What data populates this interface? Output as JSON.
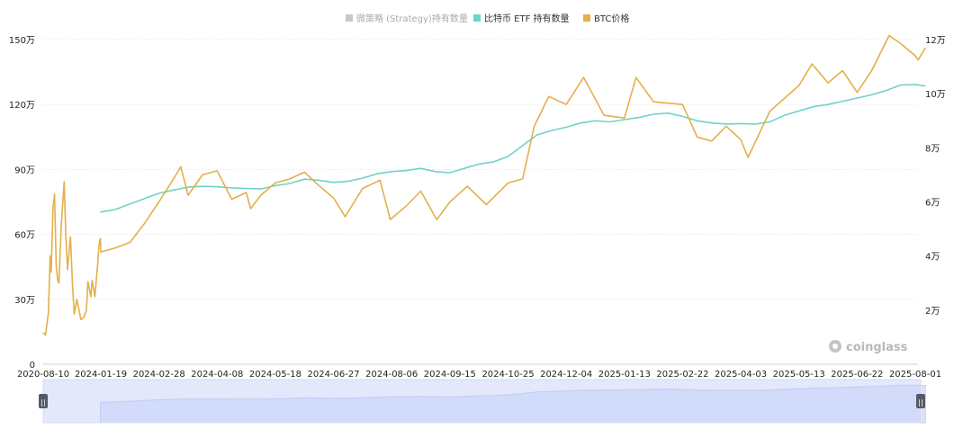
{
  "chart_data": {
    "type": "line",
    "title": "",
    "legend": {
      "placement": "top-center",
      "items": [
        {
          "label": "微策略 (Strategy)持有数量",
          "color": "#c8c8c8",
          "active": false
        },
        {
          "label": "比特币 ETF 持有数量",
          "color": "#6fd3c9",
          "active": true
        },
        {
          "label": "BTC价格",
          "color": "#e3b04b",
          "active": true
        }
      ]
    },
    "x_tick_labels": [
      "2020-08-10",
      "2024-01-19",
      "2024-02-28",
      "2024-04-08",
      "2024-05-18",
      "2024-06-27",
      "2024-08-06",
      "2024-09-15",
      "2024-10-25",
      "2024-12-04",
      "2025-01-13",
      "2025-02-22",
      "2025-04-03",
      "2025-05-13",
      "2025-06-22",
      "2025-08-01"
    ],
    "y_left": {
      "ticks": [
        0,
        300000,
        600000,
        900000,
        1200000,
        1500000
      ],
      "tick_labels": [
        "0",
        "30万",
        "60万",
        "90万",
        "120万",
        "150万"
      ],
      "ylim": [
        0,
        1500000
      ]
    },
    "y_right": {
      "ticks": [
        20000,
        40000,
        60000,
        80000,
        100000,
        120000
      ],
      "tick_labels": [
        "2万",
        "4万",
        "6万",
        "8万",
        "10万",
        "12万"
      ],
      "ylim": [
        0,
        120000
      ]
    },
    "grid": true,
    "watermark": "coinglass",
    "series": [
      {
        "name": "比特币 ETF 持有数量",
        "axis": "left",
        "color": "#6fd3c9",
        "points": [
          [
            "2024-01-11",
            705000
          ],
          [
            "2024-01-19",
            703000
          ],
          [
            "2024-01-29",
            715000
          ],
          [
            "2024-02-08",
            740000
          ],
          [
            "2024-02-18",
            765000
          ],
          [
            "2024-02-28",
            790000
          ],
          [
            "2024-03-09",
            805000
          ],
          [
            "2024-03-19",
            818000
          ],
          [
            "2024-03-29",
            822000
          ],
          [
            "2024-04-08",
            820000
          ],
          [
            "2024-04-18",
            815000
          ],
          [
            "2024-04-28",
            812000
          ],
          [
            "2024-05-08",
            810000
          ],
          [
            "2024-05-18",
            825000
          ],
          [
            "2024-05-28",
            835000
          ],
          [
            "2024-06-07",
            855000
          ],
          [
            "2024-06-17",
            850000
          ],
          [
            "2024-06-27",
            840000
          ],
          [
            "2024-07-07",
            845000
          ],
          [
            "2024-07-17",
            860000
          ],
          [
            "2024-07-27",
            880000
          ],
          [
            "2024-08-06",
            890000
          ],
          [
            "2024-08-16",
            895000
          ],
          [
            "2024-08-26",
            905000
          ],
          [
            "2024-09-05",
            890000
          ],
          [
            "2024-09-15",
            885000
          ],
          [
            "2024-09-25",
            905000
          ],
          [
            "2024-10-05",
            925000
          ],
          [
            "2024-10-15",
            935000
          ],
          [
            "2024-10-25",
            960000
          ],
          [
            "2024-11-04",
            1010000
          ],
          [
            "2024-11-14",
            1060000
          ],
          [
            "2024-11-24",
            1080000
          ],
          [
            "2024-12-04",
            1095000
          ],
          [
            "2024-12-14",
            1115000
          ],
          [
            "2024-12-24",
            1125000
          ],
          [
            "2025-01-03",
            1120000
          ],
          [
            "2025-01-13",
            1130000
          ],
          [
            "2025-01-23",
            1140000
          ],
          [
            "2025-02-02",
            1155000
          ],
          [
            "2025-02-12",
            1160000
          ],
          [
            "2025-02-22",
            1145000
          ],
          [
            "2025-03-04",
            1125000
          ],
          [
            "2025-03-14",
            1115000
          ],
          [
            "2025-03-24",
            1110000
          ],
          [
            "2025-04-03",
            1112000
          ],
          [
            "2025-04-13",
            1110000
          ],
          [
            "2025-04-23",
            1120000
          ],
          [
            "2025-05-03",
            1150000
          ],
          [
            "2025-05-13",
            1170000
          ],
          [
            "2025-05-23",
            1190000
          ],
          [
            "2025-06-02",
            1200000
          ],
          [
            "2025-06-12",
            1215000
          ],
          [
            "2025-06-22",
            1230000
          ],
          [
            "2025-07-02",
            1245000
          ],
          [
            "2025-07-12",
            1265000
          ],
          [
            "2025-07-22",
            1290000
          ],
          [
            "2025-08-01",
            1292000
          ],
          [
            "2025-08-08",
            1285000
          ]
        ]
      },
      {
        "name": "BTC价格",
        "axis": "right",
        "color": "#e3b04b",
        "points": [
          [
            "2020-08-10",
            11700
          ],
          [
            "2020-10-01",
            10800
          ],
          [
            "2020-12-01",
            19000
          ],
          [
            "2021-01-08",
            40000
          ],
          [
            "2021-02-01",
            34000
          ],
          [
            "2021-03-13",
            58000
          ],
          [
            "2021-04-14",
            63000
          ],
          [
            "2021-05-20",
            37000
          ],
          [
            "2021-06-22",
            31000
          ],
          [
            "2021-07-20",
            30000
          ],
          [
            "2021-09-06",
            51000
          ],
          [
            "2021-11-10",
            67500
          ],
          [
            "2021-12-15",
            48000
          ],
          [
            "2022-01-22",
            35000
          ],
          [
            "2022-03-28",
            47000
          ],
          [
            "2022-05-12",
            29000
          ],
          [
            "2022-06-18",
            18500
          ],
          [
            "2022-08-15",
            24000
          ],
          [
            "2022-11-10",
            16500
          ],
          [
            "2023-01-10",
            17300
          ],
          [
            "2023-03-10",
            20000
          ],
          [
            "2023-04-14",
            30500
          ],
          [
            "2023-06-15",
            25000
          ],
          [
            "2023-07-14",
            31000
          ],
          [
            "2023-09-11",
            25000
          ],
          [
            "2023-10-23",
            33000
          ],
          [
            "2023-11-15",
            37500
          ],
          [
            "2023-12-08",
            44000
          ],
          [
            "2024-01-11",
            46500
          ],
          [
            "2024-01-19",
            41500
          ],
          [
            "2024-01-29",
            43000
          ],
          [
            "2024-02-08",
            45000
          ],
          [
            "2024-02-18",
            52000
          ],
          [
            "2024-02-28",
            60000
          ],
          [
            "2024-03-09",
            68500
          ],
          [
            "2024-03-14",
            73000
          ],
          [
            "2024-03-19",
            62500
          ],
          [
            "2024-03-29",
            70000
          ],
          [
            "2024-04-08",
            71500
          ],
          [
            "2024-04-18",
            61000
          ],
          [
            "2024-04-28",
            63500
          ],
          [
            "2024-05-01",
            57500
          ],
          [
            "2024-05-08",
            62500
          ],
          [
            "2024-05-18",
            67000
          ],
          [
            "2024-05-28",
            68500
          ],
          [
            "2024-06-07",
            71000
          ],
          [
            "2024-06-17",
            66000
          ],
          [
            "2024-06-27",
            61500
          ],
          [
            "2024-07-05",
            54500
          ],
          [
            "2024-07-17",
            65000
          ],
          [
            "2024-07-29",
            68000
          ],
          [
            "2024-08-05",
            53500
          ],
          [
            "2024-08-16",
            58500
          ],
          [
            "2024-08-26",
            64000
          ],
          [
            "2024-09-06",
            53500
          ],
          [
            "2024-09-15",
            60000
          ],
          [
            "2024-09-27",
            65800
          ],
          [
            "2024-10-10",
            59000
          ],
          [
            "2024-10-25",
            67000
          ],
          [
            "2024-11-04",
            68500
          ],
          [
            "2024-11-12",
            88000
          ],
          [
            "2024-11-22",
            99000
          ],
          [
            "2024-12-04",
            96000
          ],
          [
            "2024-12-16",
            106000
          ],
          [
            "2024-12-30",
            92000
          ],
          [
            "2025-01-13",
            91000
          ],
          [
            "2025-01-21",
            106000
          ],
          [
            "2025-02-02",
            97000
          ],
          [
            "2025-02-22",
            96000
          ],
          [
            "2025-03-04",
            84000
          ],
          [
            "2025-03-14",
            82500
          ],
          [
            "2025-03-24",
            88000
          ],
          [
            "2025-04-03",
            83000
          ],
          [
            "2025-04-08",
            76500
          ],
          [
            "2025-04-23",
            93500
          ],
          [
            "2025-05-13",
            103000
          ],
          [
            "2025-05-22",
            111000
          ],
          [
            "2025-06-02",
            104000
          ],
          [
            "2025-06-12",
            108500
          ],
          [
            "2025-06-22",
            100500
          ],
          [
            "2025-07-02",
            108500
          ],
          [
            "2025-07-14",
            121500
          ],
          [
            "2025-07-22",
            118500
          ],
          [
            "2025-08-01",
            114000
          ],
          [
            "2025-08-03",
            112500
          ],
          [
            "2025-08-08",
            117000
          ]
        ]
      }
    ],
    "navigator": {
      "handle_left": "||",
      "handle_right": "||"
    }
  }
}
